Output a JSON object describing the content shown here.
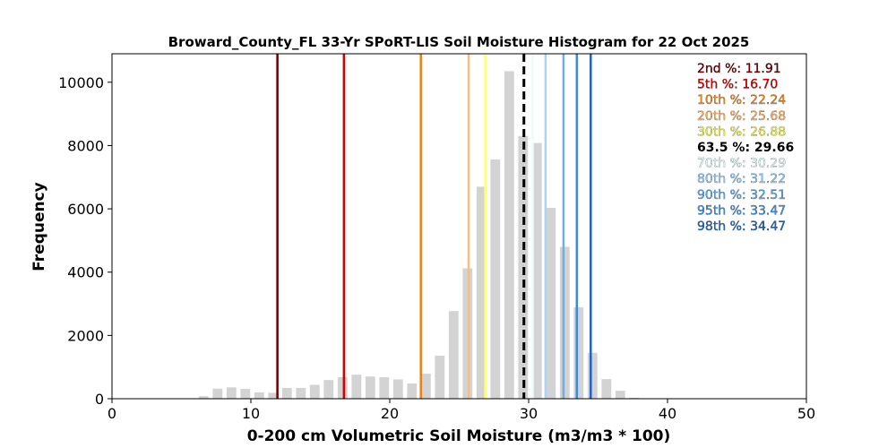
{
  "chart_data": {
    "type": "bar",
    "title": "Broward_County_FL 33-Yr SPoRT-LIS Soil Moisture Histogram for 22 Oct 2025",
    "xlabel": "0-200 cm Volumetric Soil Moisture (m3/m3 * 100)",
    "ylabel": "Frequency",
    "xlim": [
      0,
      50
    ],
    "ylim": [
      0,
      10900
    ],
    "xticks": [
      0,
      10,
      20,
      30,
      40,
      50
    ],
    "yticks": [
      0,
      2000,
      4000,
      6000,
      8000,
      10000
    ],
    "bar_color": "#d3d3d3",
    "bin_width": 1.0,
    "bins": [
      {
        "x": 6.6,
        "count": 80
      },
      {
        "x": 7.6,
        "count": 320
      },
      {
        "x": 8.6,
        "count": 360
      },
      {
        "x": 9.6,
        "count": 310
      },
      {
        "x": 10.6,
        "count": 200
      },
      {
        "x": 11.6,
        "count": 190
      },
      {
        "x": 12.6,
        "count": 340
      },
      {
        "x": 13.6,
        "count": 340
      },
      {
        "x": 14.6,
        "count": 440
      },
      {
        "x": 15.6,
        "count": 590
      },
      {
        "x": 16.6,
        "count": 680
      },
      {
        "x": 17.6,
        "count": 760
      },
      {
        "x": 18.6,
        "count": 700
      },
      {
        "x": 19.6,
        "count": 680
      },
      {
        "x": 20.6,
        "count": 610
      },
      {
        "x": 21.6,
        "count": 480
      },
      {
        "x": 22.6,
        "count": 790
      },
      {
        "x": 23.6,
        "count": 1360
      },
      {
        "x": 24.6,
        "count": 2770
      },
      {
        "x": 25.6,
        "count": 4120
      },
      {
        "x": 26.6,
        "count": 6700
      },
      {
        "x": 27.6,
        "count": 7560
      },
      {
        "x": 28.6,
        "count": 10350
      },
      {
        "x": 29.6,
        "count": 8300
      },
      {
        "x": 30.6,
        "count": 8080
      },
      {
        "x": 31.6,
        "count": 6030
      },
      {
        "x": 32.6,
        "count": 4800
      },
      {
        "x": 33.6,
        "count": 2890
      },
      {
        "x": 34.6,
        "count": 1450
      },
      {
        "x": 35.6,
        "count": 620
      },
      {
        "x": 36.6,
        "count": 250
      },
      {
        "x": 37.6,
        "count": 30
      }
    ],
    "lines": [
      {
        "label": "2nd %",
        "value": "11.91",
        "x": 11.91,
        "color": "#6b0000",
        "dashed": false
      },
      {
        "label": "5th %",
        "value": "16.70",
        "x": 16.7,
        "color": "#d40000",
        "dashed": false
      },
      {
        "label": "10th %",
        "value": "22.24",
        "x": 22.24,
        "color": "#e6821e",
        "dashed": false
      },
      {
        "label": "20th %",
        "value": "25.68",
        "x": 25.68,
        "color": "#f7be80",
        "dashed": false
      },
      {
        "label": "30th %",
        "value": "26.88",
        "x": 26.88,
        "color": "#ffff70",
        "dashed": false
      },
      {
        "label": "63.5 %",
        "value": "29.66",
        "x": 29.66,
        "color": "#000000",
        "dashed": true
      },
      {
        "label": "70th %",
        "value": "30.29",
        "x": 30.29,
        "color": "#e6ffff",
        "dashed": false
      },
      {
        "label": "80th %",
        "value": "31.22",
        "x": 31.22,
        "color": "#a9d4f5",
        "dashed": false
      },
      {
        "label": "90th %",
        "value": "32.51",
        "x": 32.51,
        "color": "#6aaeea",
        "dashed": false
      },
      {
        "label": "95th %",
        "value": "33.47",
        "x": 33.47,
        "color": "#3b8ae0",
        "dashed": false
      },
      {
        "label": "98th %",
        "value": "34.47",
        "x": 34.47,
        "color": "#1f63c7",
        "dashed": false
      }
    ],
    "legend": [
      {
        "text": "2nd %: 11.91",
        "color": "#6b0000",
        "bold": false
      },
      {
        "text": "5th %: 16.70",
        "color": "#d40000",
        "bold": false
      },
      {
        "text": "10th %: 22.24",
        "color": "#e6821e",
        "bold": false
      },
      {
        "text": "20th %: 25.68",
        "color": "#f2a85e",
        "bold": false
      },
      {
        "text": "30th %: 26.88",
        "color": "#e6e650",
        "bold": false
      },
      {
        "text": "63.5 %: 29.66",
        "color": "#000000",
        "bold": true
      },
      {
        "text": "70th %: 30.29",
        "color": "#dff4f4",
        "bold": false
      },
      {
        "text": "80th %: 31.22",
        "color": "#8cc4ee",
        "bold": false
      },
      {
        "text": "90th %: 32.51",
        "color": "#5aa2e6",
        "bold": false
      },
      {
        "text": "95th %: 33.47",
        "color": "#3b8ae0",
        "bold": false
      },
      {
        "text": "98th %: 34.47",
        "color": "#1f63c7",
        "bold": false
      }
    ],
    "grid": false,
    "legend_position": "top-right"
  }
}
